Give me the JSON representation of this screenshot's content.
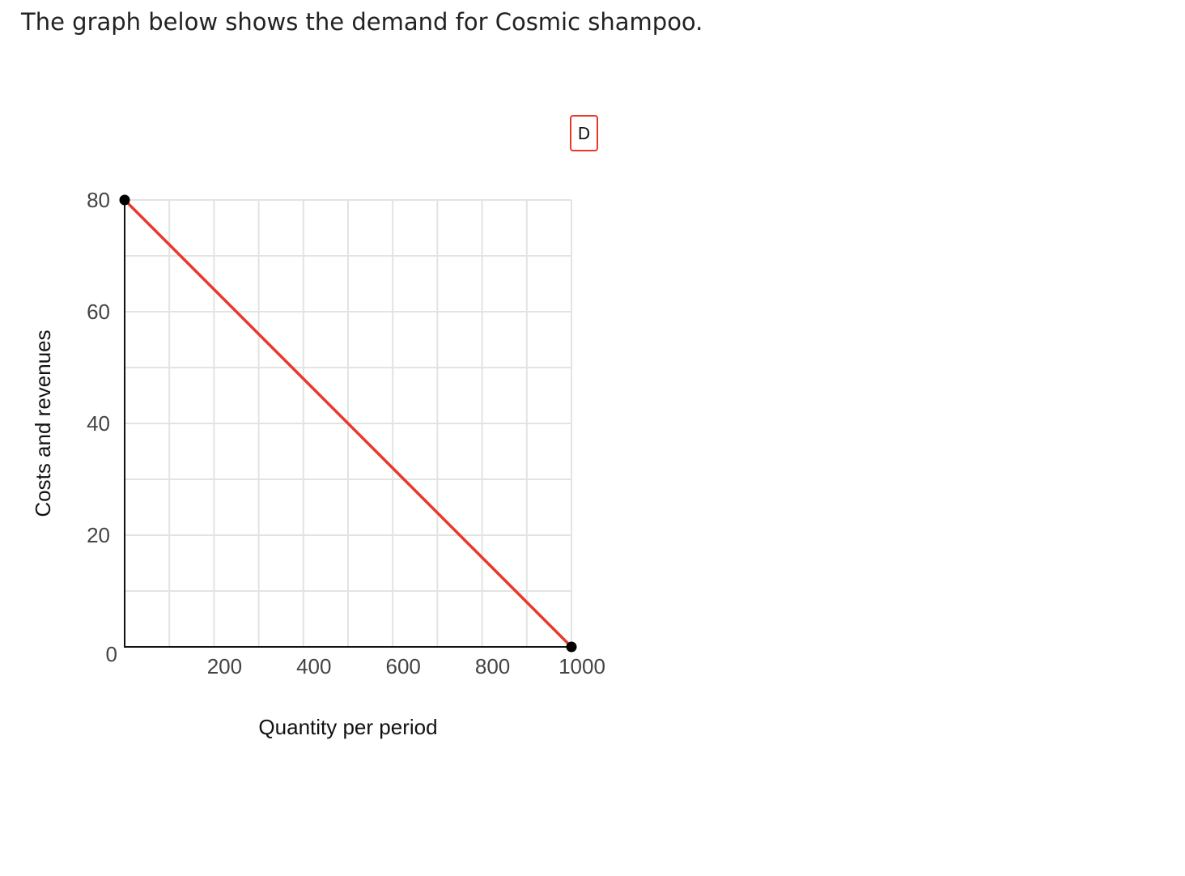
{
  "question": {
    "prompt": "The graph below shows the demand for Cosmic shampoo."
  },
  "chart_data": {
    "type": "line",
    "xlabel": "Quantity per period",
    "ylabel": "Costs and revenues",
    "xlim": [
      0,
      1000
    ],
    "ylim": [
      0,
      80
    ],
    "x_ticks": [
      200,
      400,
      600,
      800,
      1000
    ],
    "x_tick_labels": [
      "200",
      "400",
      "600",
      "800",
      "1000"
    ],
    "y_ticks": [
      0,
      20,
      40,
      60,
      80
    ],
    "y_tick_labels": [
      "0",
      "20",
      "40",
      "60",
      "80"
    ],
    "x_grid_step": 100,
    "y_grid_step": 10,
    "grid": true,
    "series": [
      {
        "name": "D",
        "color": "#e8392b",
        "points": [
          {
            "x": 0,
            "y": 80
          },
          {
            "x": 1000,
            "y": 0
          }
        ],
        "handles": [
          {
            "x": 0,
            "y": 80
          },
          {
            "x": 1000,
            "y": 0
          }
        ]
      }
    ],
    "legend": {
      "placement": "top-right",
      "label": "D",
      "border_color": "#e8392b"
    }
  }
}
